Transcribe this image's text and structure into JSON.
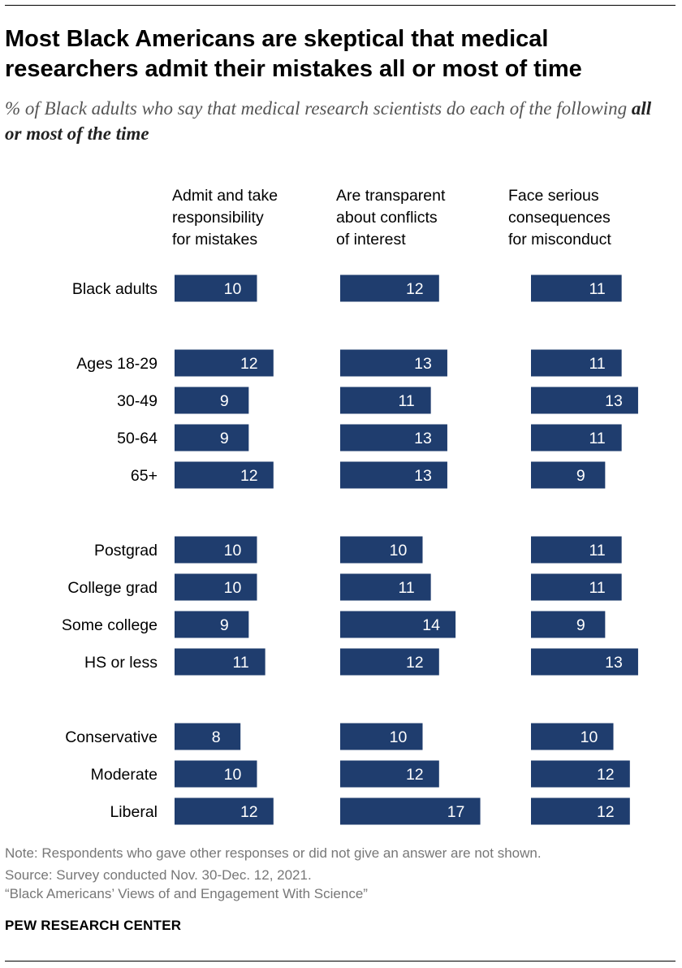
{
  "title": "Most Black Americans are skeptical that medical researchers admit their mistakes all or most of time",
  "subtitle": {
    "prefix": "% of Black adults who say that medical research scientists do each of the following ",
    "emphasis": "all or most of the time"
  },
  "colors": {
    "bar": "#1f3d6e",
    "bar_label": "#ffffff"
  },
  "chart_data": {
    "type": "bar",
    "orientation": "horizontal",
    "columns": [
      {
        "header": [
          "Admit and take",
          "responsibility",
          "for mistakes"
        ]
      },
      {
        "header": [
          "Are transparent",
          "about conflicts",
          "of interest"
        ]
      },
      {
        "header": [
          "Face serious",
          "consequences",
          "for misconduct"
        ]
      }
    ],
    "groups": [
      [
        {
          "label": "Black adults",
          "values": [
            10,
            12,
            11
          ]
        }
      ],
      [
        {
          "label": "Ages 18-29",
          "values": [
            12,
            13,
            11
          ]
        },
        {
          "label": "30-49",
          "values": [
            9,
            11,
            13
          ]
        },
        {
          "label": "50-64",
          "values": [
            9,
            13,
            11
          ]
        },
        {
          "label": "65+",
          "values": [
            12,
            13,
            9
          ]
        }
      ],
      [
        {
          "label": "Postgrad",
          "values": [
            10,
            10,
            11
          ]
        },
        {
          "label": "College grad",
          "values": [
            10,
            11,
            11
          ]
        },
        {
          "label": "Some college",
          "values": [
            9,
            14,
            9
          ]
        },
        {
          "label": "HS or less",
          "values": [
            11,
            12,
            13
          ]
        }
      ],
      [
        {
          "label": "Conservative",
          "values": [
            8,
            10,
            10
          ]
        },
        {
          "label": "Moderate",
          "values": [
            10,
            12,
            12
          ]
        },
        {
          "label": "Liberal",
          "values": [
            12,
            17,
            12
          ]
        }
      ]
    ]
  },
  "footer": {
    "note": "Note: Respondents who gave other responses or did not give an answer are not shown.",
    "source": "Source: Survey conducted Nov. 30-Dec. 12, 2021.",
    "report": "“Black Americans’ Views of and Engagement With Science”",
    "brand": "PEW RESEARCH CENTER"
  }
}
